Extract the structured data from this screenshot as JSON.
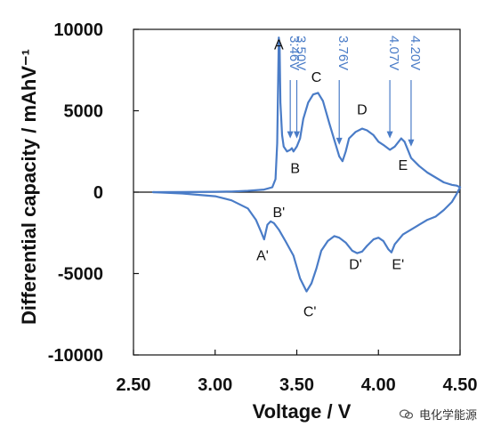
{
  "chart_data": {
    "type": "line",
    "title": "",
    "xlabel": "Voltage / V",
    "ylabel": "Differential capacity / mAhV⁻¹",
    "xlim": [
      2.5,
      4.5
    ],
    "ylim": [
      -10000,
      10000
    ],
    "x_ticks": [
      "2.50",
      "3.00",
      "3.50",
      "4.00",
      "4.50"
    ],
    "y_ticks": [
      "10000",
      "5000",
      "0",
      "-5000",
      "-10000"
    ],
    "grid": false,
    "series": [
      {
        "color": "#4a7cc7",
        "points": [
          [
            2.62,
            0
          ],
          [
            2.8,
            5
          ],
          [
            3.0,
            20
          ],
          [
            3.1,
            40
          ],
          [
            3.2,
            80
          ],
          [
            3.3,
            160
          ],
          [
            3.35,
            300
          ],
          [
            3.37,
            800
          ],
          [
            3.38,
            3000
          ],
          [
            3.39,
            9500
          ],
          [
            3.395,
            9000
          ],
          [
            3.4,
            5500
          ],
          [
            3.41,
            3500
          ],
          [
            3.42,
            2800
          ],
          [
            3.44,
            2500
          ],
          [
            3.46,
            2600
          ],
          [
            3.47,
            2700
          ],
          [
            3.48,
            2500
          ],
          [
            3.5,
            2800
          ],
          [
            3.52,
            3300
          ],
          [
            3.54,
            4500
          ],
          [
            3.57,
            5500
          ],
          [
            3.6,
            6000
          ],
          [
            3.63,
            6100
          ],
          [
            3.66,
            5600
          ],
          [
            3.7,
            4200
          ],
          [
            3.73,
            3200
          ],
          [
            3.76,
            2200
          ],
          [
            3.78,
            1900
          ],
          [
            3.8,
            2500
          ],
          [
            3.82,
            3300
          ],
          [
            3.86,
            3700
          ],
          [
            3.9,
            3900
          ],
          [
            3.93,
            3800
          ],
          [
            3.97,
            3500
          ],
          [
            4.0,
            3100
          ],
          [
            4.03,
            2900
          ],
          [
            4.07,
            2600
          ],
          [
            4.1,
            2800
          ],
          [
            4.14,
            3300
          ],
          [
            4.16,
            3100
          ],
          [
            4.18,
            2600
          ],
          [
            4.2,
            2100
          ],
          [
            4.25,
            1600
          ],
          [
            4.3,
            1200
          ],
          [
            4.35,
            900
          ],
          [
            4.4,
            600
          ],
          [
            4.45,
            450
          ],
          [
            4.48,
            400
          ],
          [
            4.5,
            300
          ]
        ]
      },
      {
        "color": "#4a7cc7",
        "points": [
          [
            4.5,
            300
          ],
          [
            4.48,
            -100
          ],
          [
            4.45,
            -600
          ],
          [
            4.4,
            -1100
          ],
          [
            4.35,
            -1500
          ],
          [
            4.3,
            -1700
          ],
          [
            4.25,
            -2000
          ],
          [
            4.2,
            -2300
          ],
          [
            4.15,
            -2600
          ],
          [
            4.1,
            -3200
          ],
          [
            4.08,
            -3700
          ],
          [
            4.06,
            -3500
          ],
          [
            4.03,
            -3000
          ],
          [
            4.0,
            -2800
          ],
          [
            3.97,
            -2900
          ],
          [
            3.93,
            -3300
          ],
          [
            3.9,
            -3650
          ],
          [
            3.87,
            -3750
          ],
          [
            3.84,
            -3600
          ],
          [
            3.8,
            -3100
          ],
          [
            3.76,
            -2800
          ],
          [
            3.73,
            -2700
          ],
          [
            3.69,
            -3000
          ],
          [
            3.65,
            -3600
          ],
          [
            3.62,
            -4700
          ],
          [
            3.59,
            -5600
          ],
          [
            3.56,
            -6100
          ],
          [
            3.52,
            -5300
          ],
          [
            3.48,
            -3900
          ],
          [
            3.43,
            -3000
          ],
          [
            3.39,
            -2300
          ],
          [
            3.36,
            -1900
          ],
          [
            3.34,
            -1800
          ],
          [
            3.32,
            -2000
          ],
          [
            3.3,
            -2900
          ],
          [
            3.28,
            -2400
          ],
          [
            3.25,
            -1700
          ],
          [
            3.2,
            -1000
          ],
          [
            3.1,
            -500
          ],
          [
            3.0,
            -250
          ],
          [
            2.8,
            -80
          ],
          [
            2.62,
            0
          ]
        ]
      }
    ],
    "annotations": {
      "charge_peaks": [
        {
          "label": "A",
          "x": 3.39,
          "y": 9000
        },
        {
          "label": "B",
          "x": 3.49,
          "y": 1400
        },
        {
          "label": "C",
          "x": 3.62,
          "y": 7000
        },
        {
          "label": "D",
          "x": 3.9,
          "y": 5000
        },
        {
          "label": "E",
          "x": 4.15,
          "y": 1600
        }
      ],
      "discharge_peaks": [
        {
          "label": "A'",
          "x": 3.29,
          "y": -3950
        },
        {
          "label": "B'",
          "x": 3.39,
          "y": -1300
        },
        {
          "label": "C'",
          "x": 3.58,
          "y": -7400
        },
        {
          "label": "D'",
          "x": 3.86,
          "y": -4500
        },
        {
          "label": "E'",
          "x": 4.12,
          "y": -4500
        }
      ],
      "voltage_markers": [
        {
          "label": "3.46V",
          "x": 3.46
        },
        {
          "label": "3.50V",
          "x": 3.5
        },
        {
          "label": "3.76V",
          "x": 3.76
        },
        {
          "label": "4.07V",
          "x": 4.07
        },
        {
          "label": "4.20V",
          "x": 4.2
        }
      ]
    }
  },
  "watermark": {
    "text": "电化学能源",
    "icon": "wechat-icon"
  }
}
